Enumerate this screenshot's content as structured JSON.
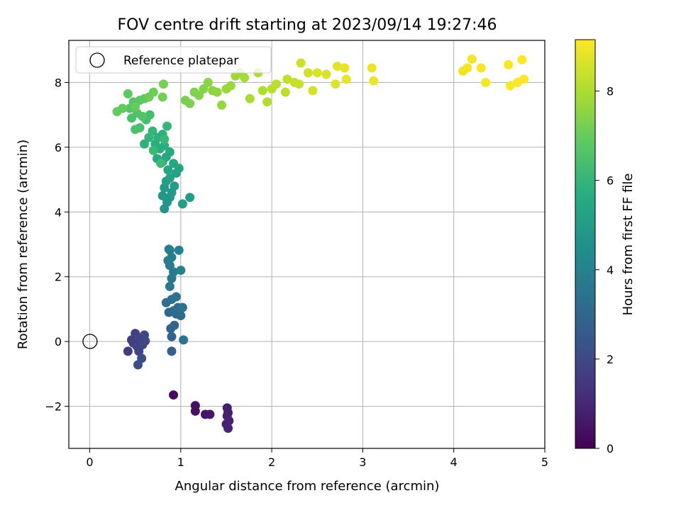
{
  "chart_data": {
    "type": "scatter",
    "title": "FOV centre drift starting at 2023/09/14 19:27:46",
    "xlabel": "Angular distance from reference (arcmin)",
    "ylabel": "Rotation from reference (arcmin)",
    "xlim": [
      -0.23,
      5.0
    ],
    "ylim": [
      -3.3,
      9.3
    ],
    "xticks": [
      0,
      1,
      2,
      3,
      4,
      5
    ],
    "xtick_labels": [
      "0",
      "1",
      "2",
      "3",
      "4",
      "5"
    ],
    "yticks": [
      -2,
      0,
      2,
      4,
      6,
      8
    ],
    "ytick_labels": [
      "−2",
      "0",
      "2",
      "4",
      "6",
      "8"
    ],
    "grid": true,
    "legend": {
      "placement": "upper-left",
      "entries": [
        "Reference platepar"
      ]
    },
    "reference_point": {
      "x": 0,
      "y": 0,
      "marker": "open-circle",
      "color": "#000000"
    },
    "colorbar": {
      "label": "Hours from first FF file",
      "range": [
        0,
        9.15
      ],
      "ticks": [
        0,
        2,
        4,
        6,
        8
      ],
      "tick_labels": [
        "0",
        "2",
        "4",
        "6",
        "8"
      ],
      "colormap": "viridis"
    },
    "series": [
      {
        "color_by": "hours",
        "points": [
          [
            0.92,
            -1.65,
            0.3
          ],
          [
            1.16,
            -1.98,
            0.4
          ],
          [
            1.16,
            -2.15,
            0.45
          ],
          [
            1.27,
            -2.25,
            0.55
          ],
          [
            1.32,
            -2.25,
            0.6
          ],
          [
            1.51,
            -2.05,
            0.7
          ],
          [
            1.52,
            -2.2,
            0.75
          ],
          [
            1.51,
            -2.3,
            0.8
          ],
          [
            1.53,
            -2.45,
            0.85
          ],
          [
            1.5,
            -2.55,
            0.9
          ],
          [
            1.52,
            -2.68,
            0.95
          ],
          [
            0.42,
            -0.3,
            1.6
          ],
          [
            0.46,
            0.05,
            1.65
          ],
          [
            0.48,
            -0.05,
            1.7
          ],
          [
            0.5,
            0.25,
            1.75
          ],
          [
            0.52,
            -0.15,
            1.8
          ],
          [
            0.54,
            -0.3,
            1.85
          ],
          [
            0.56,
            0.1,
            1.9
          ],
          [
            0.58,
            -0.1,
            1.95
          ],
          [
            0.6,
            0.2,
            2.0
          ],
          [
            0.61,
            0.02,
            2.05
          ],
          [
            0.53,
            -0.72,
            2.1
          ],
          [
            0.57,
            -0.52,
            2.15
          ],
          [
            0.9,
            -0.3,
            2.8
          ],
          [
            0.9,
            0.15,
            2.9
          ],
          [
            0.89,
            0.4,
            2.95
          ],
          [
            0.93,
            0.5,
            3.0
          ],
          [
            0.87,
            0.9,
            3.05
          ],
          [
            0.92,
            0.95,
            3.1
          ],
          [
            0.95,
            0.85,
            3.15
          ],
          [
            0.97,
            1.05,
            3.2
          ],
          [
            1.0,
            0.8,
            3.25
          ],
          [
            0.84,
            1.2,
            3.3
          ],
          [
            0.9,
            1.3,
            3.35
          ],
          [
            0.95,
            1.38,
            3.4
          ],
          [
            1.02,
            1.05,
            3.45
          ],
          [
            1.03,
            0.05,
            3.5
          ],
          [
            0.88,
            1.7,
            3.6
          ],
          [
            0.9,
            1.95,
            3.65
          ],
          [
            0.92,
            2.15,
            3.7
          ],
          [
            0.88,
            2.35,
            3.75
          ],
          [
            0.86,
            2.5,
            3.8
          ],
          [
            0.9,
            2.6,
            3.85
          ],
          [
            0.87,
            2.85,
            3.9
          ],
          [
            0.88,
            2.82,
            3.92
          ],
          [
            0.98,
            2.82,
            3.95
          ],
          [
            1.0,
            2.2,
            4.0
          ],
          [
            0.82,
            4.1,
            4.7
          ],
          [
            0.85,
            4.3,
            4.75
          ],
          [
            0.88,
            4.45,
            4.8
          ],
          [
            0.8,
            4.5,
            4.85
          ],
          [
            0.9,
            4.6,
            4.9
          ],
          [
            0.82,
            4.75,
            4.95
          ],
          [
            0.93,
            4.8,
            5.0
          ],
          [
            1.1,
            4.45,
            5.05
          ],
          [
            1.02,
            4.25,
            5.1
          ],
          [
            0.84,
            4.95,
            5.15
          ],
          [
            0.88,
            5.05,
            5.2
          ],
          [
            0.95,
            5.2,
            5.25
          ],
          [
            0.98,
            5.35,
            5.3
          ],
          [
            0.86,
            5.3,
            5.35
          ],
          [
            0.92,
            5.5,
            5.4
          ],
          [
            0.8,
            5.55,
            5.45
          ],
          [
            0.84,
            5.7,
            5.5
          ],
          [
            0.88,
            5.85,
            5.55
          ],
          [
            0.74,
            5.65,
            5.6
          ],
          [
            0.77,
            5.95,
            5.65
          ],
          [
            0.82,
            6.05,
            5.7
          ],
          [
            0.72,
            6.1,
            5.75
          ],
          [
            0.75,
            6.3,
            5.8
          ],
          [
            0.8,
            6.4,
            5.85
          ],
          [
            0.6,
            6.1,
            5.9
          ],
          [
            0.65,
            6.3,
            5.95
          ],
          [
            0.69,
            6.5,
            6.0
          ],
          [
            0.85,
            6.65,
            6.05
          ],
          [
            0.82,
            6.25,
            6.1
          ],
          [
            0.7,
            5.9,
            6.15
          ],
          [
            0.78,
            5.5,
            6.2
          ],
          [
            0.62,
            6.85,
            6.3
          ],
          [
            0.66,
            7.0,
            6.35
          ],
          [
            0.55,
            6.6,
            6.4
          ],
          [
            0.5,
            6.55,
            6.45
          ],
          [
            0.46,
            6.9,
            6.5
          ],
          [
            0.52,
            7.05,
            6.55
          ],
          [
            0.58,
            6.95,
            6.6
          ],
          [
            0.44,
            7.2,
            6.65
          ],
          [
            0.48,
            7.4,
            6.7
          ],
          [
            0.55,
            7.45,
            6.75
          ],
          [
            0.6,
            7.5,
            6.8
          ],
          [
            0.42,
            7.65,
            6.85
          ],
          [
            0.36,
            7.2,
            6.9
          ],
          [
            0.3,
            7.1,
            6.95
          ],
          [
            0.5,
            7.25,
            7.0
          ],
          [
            0.65,
            7.55,
            7.05
          ],
          [
            0.7,
            7.7,
            7.1
          ],
          [
            0.8,
            7.55,
            7.15
          ],
          [
            0.81,
            7.95,
            7.2
          ],
          [
            1.05,
            7.45,
            7.25
          ],
          [
            1.1,
            7.35,
            7.3
          ],
          [
            1.15,
            7.7,
            7.35
          ],
          [
            1.2,
            7.6,
            7.4
          ],
          [
            1.25,
            7.8,
            7.45
          ],
          [
            1.3,
            8.0,
            7.5
          ],
          [
            1.35,
            7.75,
            7.55
          ],
          [
            1.4,
            7.7,
            7.6
          ],
          [
            1.45,
            7.3,
            7.65
          ],
          [
            1.5,
            7.8,
            7.7
          ],
          [
            1.55,
            7.9,
            7.75
          ],
          [
            1.6,
            8.2,
            7.8
          ],
          [
            1.65,
            8.3,
            7.85
          ],
          [
            1.7,
            8.15,
            7.9
          ],
          [
            1.76,
            7.5,
            7.95
          ],
          [
            1.85,
            8.3,
            8.0
          ],
          [
            1.9,
            7.75,
            8.05
          ],
          [
            1.95,
            7.4,
            8.1
          ],
          [
            2.0,
            7.8,
            8.15
          ],
          [
            2.05,
            7.95,
            8.2
          ],
          [
            2.15,
            7.7,
            8.25
          ],
          [
            2.17,
            8.1,
            8.3
          ],
          [
            2.25,
            8.0,
            8.35
          ],
          [
            2.3,
            7.95,
            8.4
          ],
          [
            2.32,
            8.6,
            8.45
          ],
          [
            2.4,
            8.3,
            8.5
          ],
          [
            2.45,
            7.75,
            8.55
          ],
          [
            2.5,
            8.3,
            8.6
          ],
          [
            2.6,
            8.25,
            8.65
          ],
          [
            2.7,
            7.95,
            8.7
          ],
          [
            2.72,
            8.5,
            8.75
          ],
          [
            2.8,
            8.45,
            8.8
          ],
          [
            2.82,
            8.1,
            8.85
          ],
          [
            3.1,
            8.45,
            8.9
          ],
          [
            3.12,
            8.05,
            8.92
          ],
          [
            4.1,
            8.35,
            8.95
          ],
          [
            4.15,
            8.45,
            8.98
          ],
          [
            4.2,
            8.72,
            9.0
          ],
          [
            4.3,
            8.45,
            9.03
          ],
          [
            4.35,
            8.0,
            9.05
          ],
          [
            4.6,
            8.55,
            9.08
          ],
          [
            4.62,
            7.9,
            9.1
          ],
          [
            4.7,
            8.0,
            9.12
          ],
          [
            4.75,
            8.7,
            9.13
          ],
          [
            4.77,
            8.1,
            9.15
          ]
        ]
      }
    ]
  }
}
